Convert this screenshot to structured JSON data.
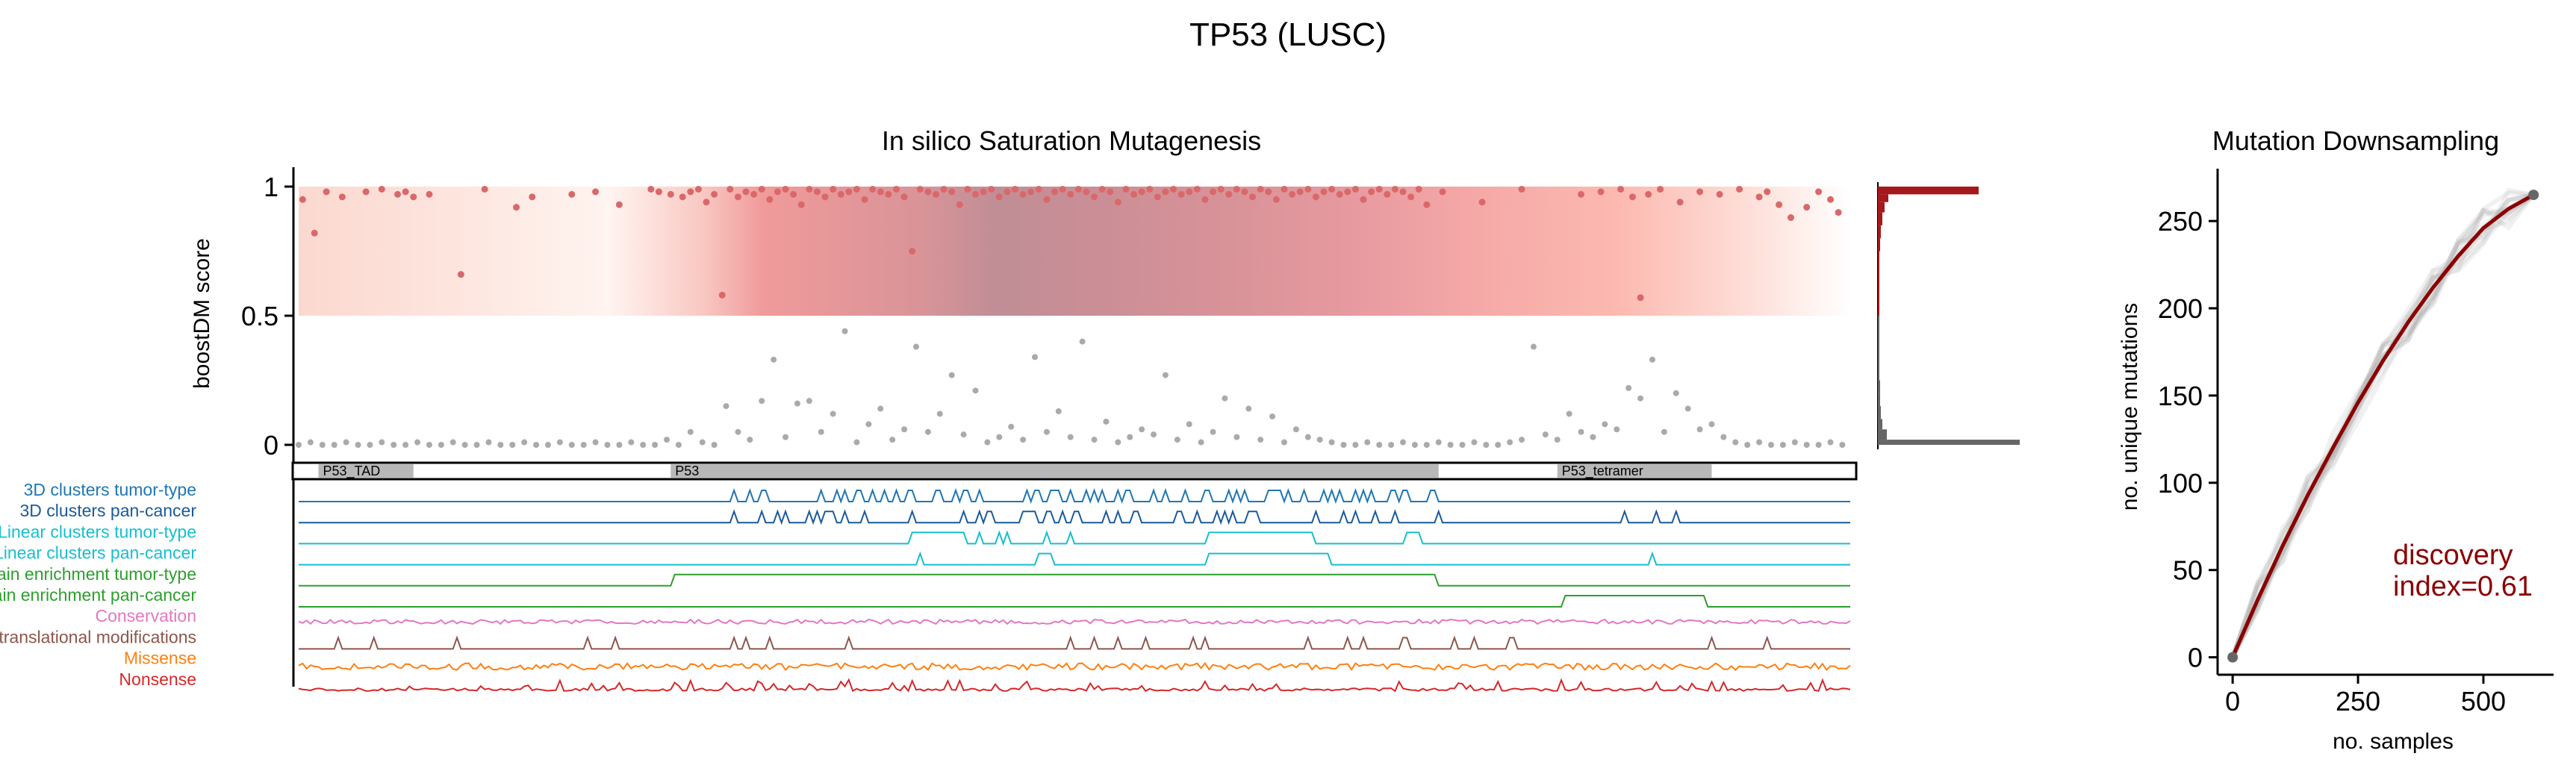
{
  "figure": {
    "title": "TP53 (LUSC)"
  },
  "colors": {
    "driver_points": "#d9686a",
    "passenger_points": "#aaaaaa",
    "hist_driver": "#a5191c",
    "hist_passenger": "#666666",
    "downsampling_line": "#8b0000",
    "downsampling_runs": "#888888",
    "discovery_text": "#8b0000"
  },
  "chart_data": [
    {
      "id": "saturation",
      "type": "scatter",
      "title": "In silico Saturation Mutagenesis",
      "ylabel": "boostDM score",
      "ylim": [
        0,
        1
      ],
      "yticks": [
        0,
        0.5,
        1
      ],
      "ytick_labels": [
        "0",
        "0.5",
        "1"
      ],
      "xlim": [
        1,
        393
      ],
      "xlabel": "",
      "driver_threshold": 0.5,
      "driver_points": {
        "x": [
          2,
          5,
          8,
          12,
          18,
          22,
          26,
          28,
          30,
          34,
          42,
          48,
          56,
          60,
          70,
          76,
          82,
          90,
          92,
          95,
          98,
          100,
          102,
          104,
          106,
          108,
          110,
          112,
          114,
          116,
          118,
          120,
          122,
          124,
          126,
          128,
          130,
          132,
          134,
          136,
          138,
          140,
          142,
          144,
          146,
          148,
          150,
          152,
          154,
          156,
          158,
          160,
          162,
          164,
          166,
          168,
          170,
          172,
          174,
          176,
          178,
          180,
          182,
          184,
          186,
          188,
          190,
          192,
          194,
          196,
          198,
          200,
          202,
          204,
          206,
          208,
          210,
          212,
          214,
          216,
          218,
          220,
          222,
          224,
          226,
          228,
          230,
          232,
          234,
          236,
          238,
          240,
          242,
          244,
          246,
          248,
          250,
          252,
          254,
          256,
          258,
          260,
          262,
          264,
          266,
          268,
          270,
          272,
          274,
          276,
          278,
          280,
          282,
          284,
          286,
          290,
          300,
          310,
          325,
          330,
          335,
          338,
          340,
          342,
          345,
          350,
          355,
          360,
          365,
          370,
          372,
          375,
          378,
          382,
          385,
          388,
          390
        ],
        "y": [
          0.95,
          0.82,
          0.98,
          0.96,
          0.98,
          0.99,
          0.97,
          0.98,
          0.96,
          0.97,
          0.66,
          0.99,
          0.92,
          0.96,
          0.97,
          0.98,
          0.93,
          0.99,
          0.98,
          0.97,
          0.96,
          0.98,
          0.99,
          0.94,
          0.97,
          0.58,
          0.99,
          0.96,
          0.98,
          0.97,
          0.99,
          0.95,
          0.98,
          0.99,
          0.97,
          0.93,
          0.99,
          0.98,
          0.96,
          0.99,
          0.97,
          0.98,
          0.99,
          0.95,
          0.99,
          0.98,
          0.97,
          0.99,
          0.96,
          0.75,
          0.99,
          0.98,
          0.97,
          0.99,
          0.98,
          0.93,
          0.99,
          0.97,
          0.98,
          0.99,
          0.96,
          0.98,
          0.99,
          0.97,
          0.98,
          0.99,
          0.95,
          0.98,
          0.99,
          0.97,
          0.99,
          0.98,
          0.96,
          0.99,
          0.98,
          0.94,
          0.99,
          0.97,
          0.98,
          0.99,
          0.96,
          0.98,
          0.99,
          0.97,
          0.98,
          0.99,
          0.95,
          0.98,
          0.99,
          0.97,
          0.99,
          0.98,
          0.96,
          0.99,
          0.98,
          0.95,
          0.99,
          0.97,
          0.98,
          0.99,
          0.96,
          0.98,
          0.99,
          0.97,
          0.98,
          0.99,
          0.95,
          0.98,
          0.99,
          0.97,
          0.99,
          0.98,
          0.96,
          0.99,
          0.93,
          0.98,
          0.94,
          0.99,
          0.97,
          0.98,
          0.99,
          0.96,
          0.57,
          0.97,
          0.99,
          0.94,
          0.98,
          0.97,
          0.99,
          0.96,
          0.98,
          0.93,
          0.88,
          0.92,
          0.98,
          0.95,
          0.9
        ]
      },
      "passenger_points": {
        "x": [
          1,
          4,
          7,
          10,
          13,
          16,
          19,
          22,
          25,
          28,
          31,
          34,
          37,
          40,
          43,
          46,
          49,
          52,
          55,
          58,
          61,
          64,
          67,
          70,
          73,
          76,
          79,
          82,
          85,
          88,
          91,
          94,
          97,
          100,
          103,
          106,
          109,
          112,
          115,
          118,
          121,
          124,
          127,
          130,
          133,
          136,
          139,
          142,
          145,
          148,
          151,
          154,
          157,
          160,
          163,
          166,
          169,
          172,
          175,
          178,
          181,
          184,
          187,
          190,
          193,
          196,
          199,
          202,
          205,
          208,
          211,
          214,
          217,
          220,
          223,
          226,
          229,
          232,
          235,
          238,
          241,
          244,
          247,
          250,
          253,
          256,
          259,
          262,
          265,
          268,
          271,
          274,
          277,
          280,
          283,
          286,
          289,
          292,
          295,
          298,
          301,
          304,
          307,
          310,
          313,
          316,
          319,
          322,
          325,
          328,
          331,
          334,
          337,
          340,
          343,
          346,
          349,
          352,
          355,
          358,
          361,
          364,
          367,
          370,
          373,
          376,
          379,
          382,
          385,
          388,
          391
        ],
        "y": [
          0.0,
          0.01,
          0.0,
          0.0,
          0.01,
          0.0,
          0.0,
          0.01,
          0.0,
          0.0,
          0.01,
          0.0,
          0.0,
          0.01,
          0.0,
          0.0,
          0.01,
          0.0,
          0.0,
          0.01,
          0.0,
          0.0,
          0.01,
          0.0,
          0.0,
          0.01,
          0.0,
          0.0,
          0.01,
          0.0,
          0.0,
          0.02,
          0.0,
          0.05,
          0.01,
          0.0,
          0.15,
          0.05,
          0.02,
          0.17,
          0.33,
          0.03,
          0.16,
          0.17,
          0.05,
          0.12,
          0.44,
          0.01,
          0.08,
          0.14,
          0.02,
          0.06,
          0.38,
          0.05,
          0.12,
          0.27,
          0.04,
          0.21,
          0.01,
          0.03,
          0.07,
          0.02,
          0.34,
          0.05,
          0.13,
          0.03,
          0.4,
          0.02,
          0.09,
          0.01,
          0.03,
          0.06,
          0.04,
          0.27,
          0.02,
          0.08,
          0.01,
          0.05,
          0.18,
          0.03,
          0.14,
          0.02,
          0.11,
          0.01,
          0.06,
          0.03,
          0.02,
          0.01,
          0.0,
          0.0,
          0.01,
          0.0,
          0.0,
          0.01,
          0.0,
          0.0,
          0.01,
          0.0,
          0.0,
          0.01,
          0.0,
          0.0,
          0.01,
          0.02,
          0.38,
          0.04,
          0.02,
          0.12,
          0.05,
          0.03,
          0.08,
          0.06,
          0.22,
          0.18,
          0.33,
          0.05,
          0.2,
          0.14,
          0.06,
          0.08,
          0.03,
          0.01,
          0.0,
          0.01,
          0.0,
          0.0,
          0.01,
          0.0,
          0.0,
          0.01,
          0.0
        ]
      },
      "domains": [
        {
          "label": "P53_TAD",
          "start": 6,
          "end": 30
        },
        {
          "label": "P53",
          "start": 95,
          "end": 289
        },
        {
          "label": "P53_tetramer",
          "start": 319,
          "end": 358
        }
      ],
      "feature_tracks": [
        {
          "label": "3D clusters tumor-type",
          "color": "#1f77b4"
        },
        {
          "label": "3D clusters pan-cancer",
          "color": "#1a5a9c"
        },
        {
          "label": "Linear clusters tumor-type",
          "color": "#17becf"
        },
        {
          "label": "Linear clusters pan-cancer",
          "color": "#17becf"
        },
        {
          "label": "Domain enrichment tumor-type",
          "color": "#2ca02c"
        },
        {
          "label": "Domain enrichment pan-cancer",
          "color": "#2ca02c"
        },
        {
          "label": "Conservation",
          "color": "#e377c2"
        },
        {
          "label": "Post-translational modifications",
          "color": "#8c564b"
        },
        {
          "label": "Missense",
          "color": "#ff7f0e"
        },
        {
          "label": "Nonsense",
          "color": "#d62728"
        }
      ]
    },
    {
      "id": "score-histogram",
      "type": "bar",
      "orientation": "horizontal",
      "title": "",
      "bins": [
        0.0,
        0.02,
        0.06,
        0.1,
        0.15,
        0.2,
        0.25,
        0.3,
        0.35,
        0.4,
        0.45,
        0.5,
        0.55,
        0.6,
        0.65,
        0.7,
        0.75,
        0.8,
        0.85,
        0.9,
        0.94,
        0.97
      ],
      "values": [
        190,
        12,
        6,
        4,
        3,
        3,
        2,
        2,
        2,
        1,
        1,
        1,
        1,
        2,
        2,
        2,
        3,
        4,
        6,
        9,
        14,
        135
      ]
    },
    {
      "id": "downsampling",
      "type": "line",
      "title": "Mutation Downsampling",
      "xlabel": "no. samples",
      "ylabel": "no. unique mutations",
      "xlim": [
        -30,
        640
      ],
      "ylim": [
        -10,
        280
      ],
      "xticks": [
        0,
        250,
        500
      ],
      "yticks": [
        0,
        50,
        100,
        150,
        200,
        250
      ],
      "x": [
        0,
        50,
        100,
        150,
        200,
        250,
        300,
        350,
        400,
        450,
        500,
        550,
        600
      ],
      "y": [
        0,
        33,
        64,
        93,
        120,
        146,
        170,
        192,
        212,
        230,
        246,
        257,
        265
      ],
      "annotation": "discovery\nindex=0.61"
    }
  ]
}
